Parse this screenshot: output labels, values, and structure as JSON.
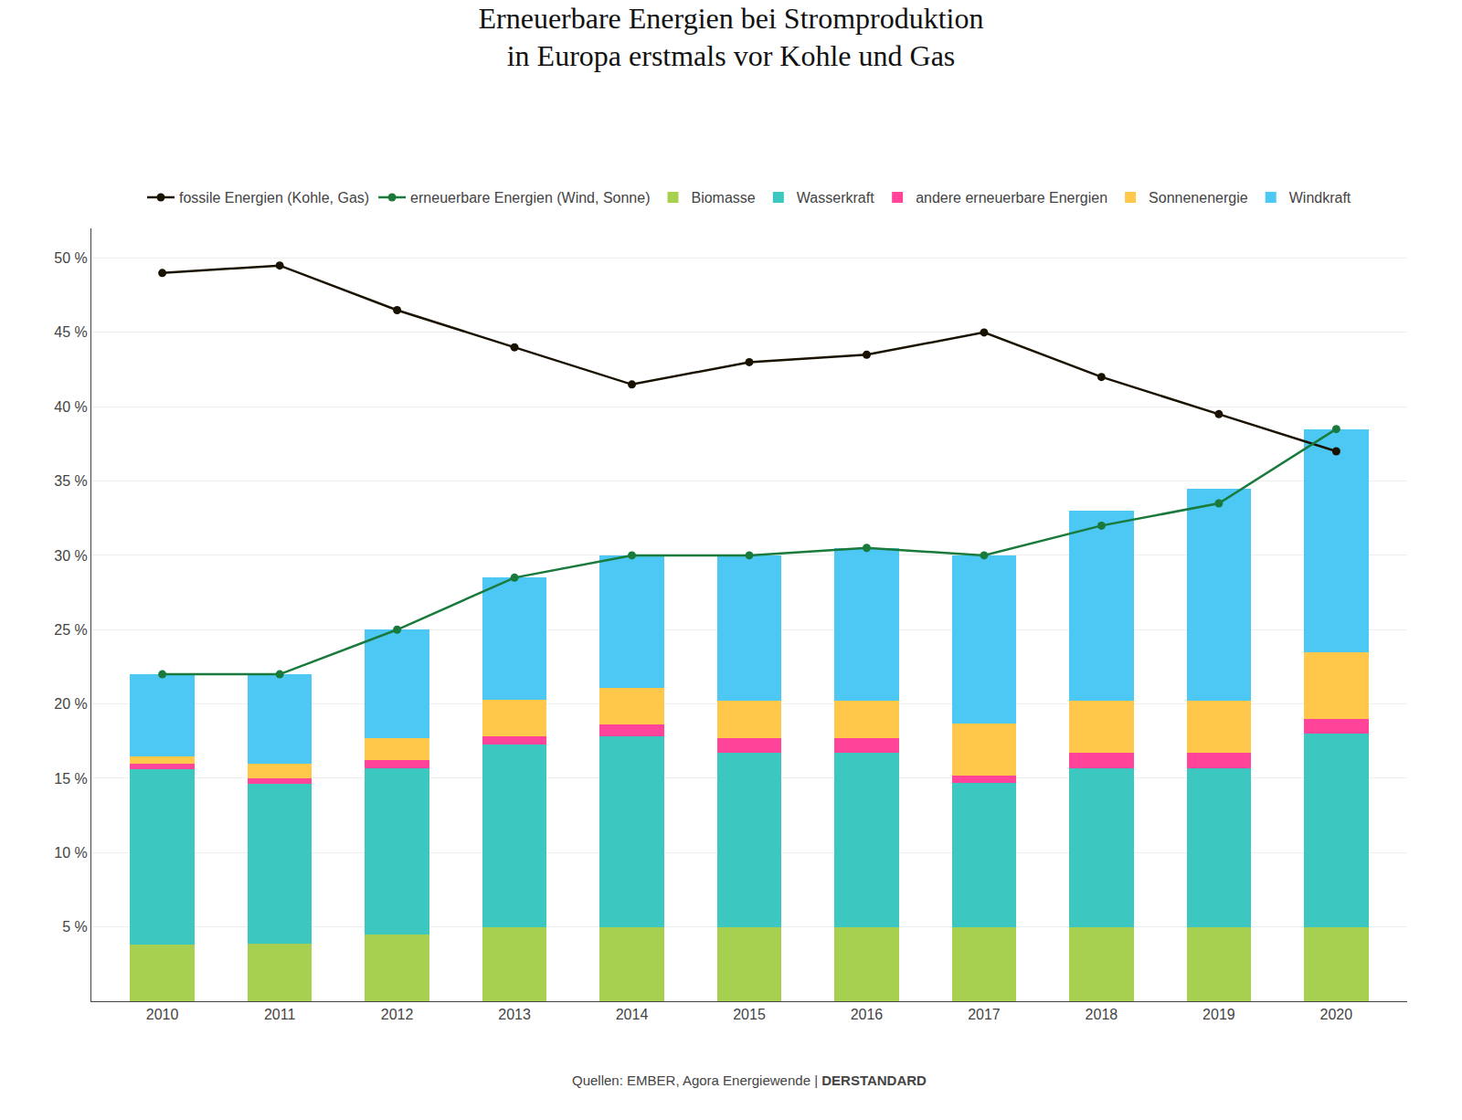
{
  "chart_data": {
    "type": "bar",
    "title": "Erneuerbare Energien bei Stromproduktion",
    "subtitle": "in Europa erstmals vor Kohle und Gas",
    "annotations": [
      "Quellen: EMBER, Agora Energiewende | ",
      "DERSTANDARD"
    ],
    "categories": [
      "2010",
      "2011",
      "2012",
      "2013",
      "2014",
      "2015",
      "2016",
      "2017",
      "2018",
      "2019",
      "2020"
    ],
    "stacked": true,
    "grid": true,
    "legend": "top",
    "series": [
      {
        "name": "Biomasse",
        "type": "bar",
        "color": "#a8d050",
        "values": [
          3.8,
          3.9,
          4.5,
          5.0,
          5.0,
          5.0,
          5.0,
          5.0,
          5.0,
          5.0,
          5.0
        ]
      },
      {
        "name": "Wasserkraft",
        "type": "bar",
        "color": "#3cc8c0",
        "values": [
          11.8,
          10.7,
          11.2,
          12.3,
          12.8,
          11.7,
          11.7,
          9.7,
          10.7,
          10.7,
          13.0
        ]
      },
      {
        "name": "andere erneuerbare Energien",
        "type": "bar",
        "color": "#ff4499",
        "values": [
          0.4,
          0.4,
          0.5,
          0.5,
          0.8,
          1.0,
          1.0,
          0.5,
          1.0,
          1.0,
          1.0
        ]
      },
      {
        "name": "Sonnenenergie",
        "type": "bar",
        "color": "#ffc84b",
        "values": [
          0.5,
          1.0,
          1.5,
          2.5,
          2.5,
          2.5,
          2.5,
          3.5,
          3.5,
          3.5,
          4.5
        ]
      },
      {
        "name": "Windkraft",
        "type": "bar",
        "color": "#4dc8f5",
        "values": [
          5.5,
          6.0,
          7.3,
          8.2,
          8.9,
          9.8,
          10.3,
          11.3,
          12.8,
          14.3,
          15.0
        ]
      },
      {
        "name": "fossile Energien (Kohle, Gas)",
        "type": "line",
        "color": "#1a1200",
        "marker": "circle",
        "line_style": "solid",
        "values": [
          49.0,
          49.5,
          46.5,
          44.0,
          41.5,
          43.0,
          43.5,
          45.0,
          42.0,
          39.5,
          37.0
        ]
      },
      {
        "name": "erneuerbare Energien (Wind, Sonne)",
        "type": "line",
        "color": "#1a7a3c",
        "marker": "circle",
        "line_style": "solid",
        "values": [
          22.0,
          22.0,
          25.0,
          28.5,
          30.0,
          30.0,
          30.5,
          30.0,
          32.0,
          33.5,
          38.5
        ]
      }
    ],
    "ylim": [
      0,
      52
    ],
    "yticks": [
      {
        "value": 5,
        "label": "5 %"
      },
      {
        "value": 10,
        "label": "10 %"
      },
      {
        "value": 15,
        "label": "15 %"
      },
      {
        "value": 20,
        "label": "20 %"
      },
      {
        "value": 25,
        "label": "25 %"
      },
      {
        "value": 30,
        "label": "30 %"
      },
      {
        "value": 35,
        "label": "35 %"
      },
      {
        "value": 40,
        "label": "40 %"
      },
      {
        "value": 45,
        "label": "45 %"
      },
      {
        "value": 50,
        "label": "50 %"
      }
    ]
  }
}
